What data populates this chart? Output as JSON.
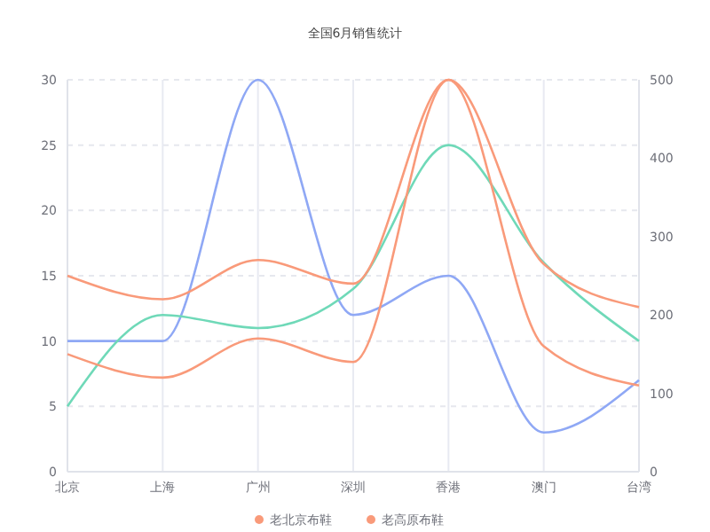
{
  "chart_data": {
    "type": "line",
    "title": "全国6月销售统计",
    "categories": [
      "北京",
      "上海",
      "广州",
      "深圳",
      "香港",
      "澳门",
      "台湾"
    ],
    "series": [
      {
        "color": "#8fa8f5",
        "values": [
          10,
          10,
          30,
          12,
          15,
          3,
          7
        ]
      },
      {
        "color": "#6fd9b8",
        "values": [
          5,
          12,
          11,
          14,
          25,
          16,
          10
        ]
      },
      {
        "name": "老北京布鞋",
        "color": "#f99a7a",
        "axis": "y2",
        "values": [
          250,
          220,
          270,
          240,
          500,
          265,
          210
        ]
      },
      {
        "name": "老高原布鞋",
        "color": "#f99a7a",
        "axis": "y2",
        "values": [
          150,
          120,
          170,
          140,
          500,
          160,
          110
        ]
      }
    ],
    "ylim": [
      0,
      30
    ],
    "yticks": [
      0,
      5,
      10,
      15,
      20,
      25,
      30
    ],
    "y2lim": [
      0,
      500
    ],
    "y2ticks": [
      0,
      100,
      200,
      300,
      400,
      500
    ],
    "grid": true,
    "legend": "bottom",
    "marker": "none"
  }
}
